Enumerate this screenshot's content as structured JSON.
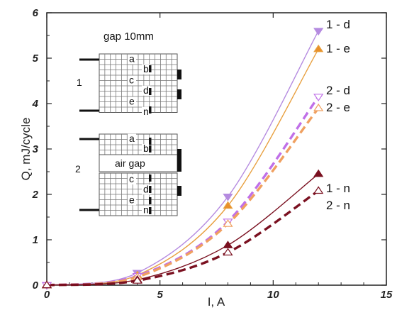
{
  "chart_data": {
    "type": "line",
    "title": "",
    "xlabel": "I, A",
    "ylabel": "Q, mJ/cycle",
    "xlim": [
      0,
      15
    ],
    "ylim": [
      0,
      6
    ],
    "x_ticks": [
      0,
      5,
      10,
      15
    ],
    "y_ticks": [
      0,
      1,
      2,
      3,
      4,
      5,
      6
    ],
    "grid": false,
    "series": [
      {
        "name": "1 - d",
        "color": "#b58be0",
        "style": "solid",
        "marker": "triangle-down",
        "marker_fill": "#b58be0",
        "x": [
          0,
          4,
          8,
          12
        ],
        "y": [
          0,
          0.27,
          1.95,
          5.6
        ]
      },
      {
        "name": "1 - e",
        "color": "#e8a040",
        "style": "solid",
        "marker": "triangle-up",
        "marker_fill": "#e8902a",
        "x": [
          0,
          4,
          8,
          12
        ],
        "y": [
          0,
          0.22,
          1.75,
          5.2
        ]
      },
      {
        "name": "2 - d",
        "color": "#c070e8",
        "style": "dashed",
        "marker": "triangle-down",
        "marker_fill": "#ffffff",
        "x": [
          0,
          4,
          8,
          12
        ],
        "y": [
          0,
          0.2,
          1.4,
          4.15
        ]
      },
      {
        "name": "2 - e",
        "color": "#f0a060",
        "style": "dashed",
        "marker": "triangle-up",
        "marker_fill": "#ffffff",
        "x": [
          0,
          4,
          8,
          12
        ],
        "y": [
          0,
          0.18,
          1.35,
          3.9
        ]
      },
      {
        "name": "1 - n",
        "color": "#7a1020",
        "style": "solid",
        "marker": "triangle-up",
        "marker_fill": "#7a1020",
        "x": [
          0,
          4,
          8,
          12
        ],
        "y": [
          0,
          0.12,
          0.88,
          2.45
        ]
      },
      {
        "name": "2 - n",
        "color": "#7a1020",
        "style": "dashed",
        "marker": "triangle-up",
        "marker_fill": "#ffffff",
        "x": [
          0,
          4,
          8,
          12
        ],
        "y": [
          0,
          0.1,
          0.72,
          2.08
        ]
      }
    ],
    "inset": {
      "title": "gap 10mm",
      "group1_label": "1",
      "group2_label": "2",
      "air_gap_label": "air gap",
      "layers_group1": [
        "a",
        "b",
        "c",
        "d",
        "e",
        "n"
      ],
      "layers_group2_top": [
        "a",
        "b"
      ],
      "layers_group2_bottom": [
        "c",
        "d",
        "e",
        "n"
      ]
    }
  }
}
